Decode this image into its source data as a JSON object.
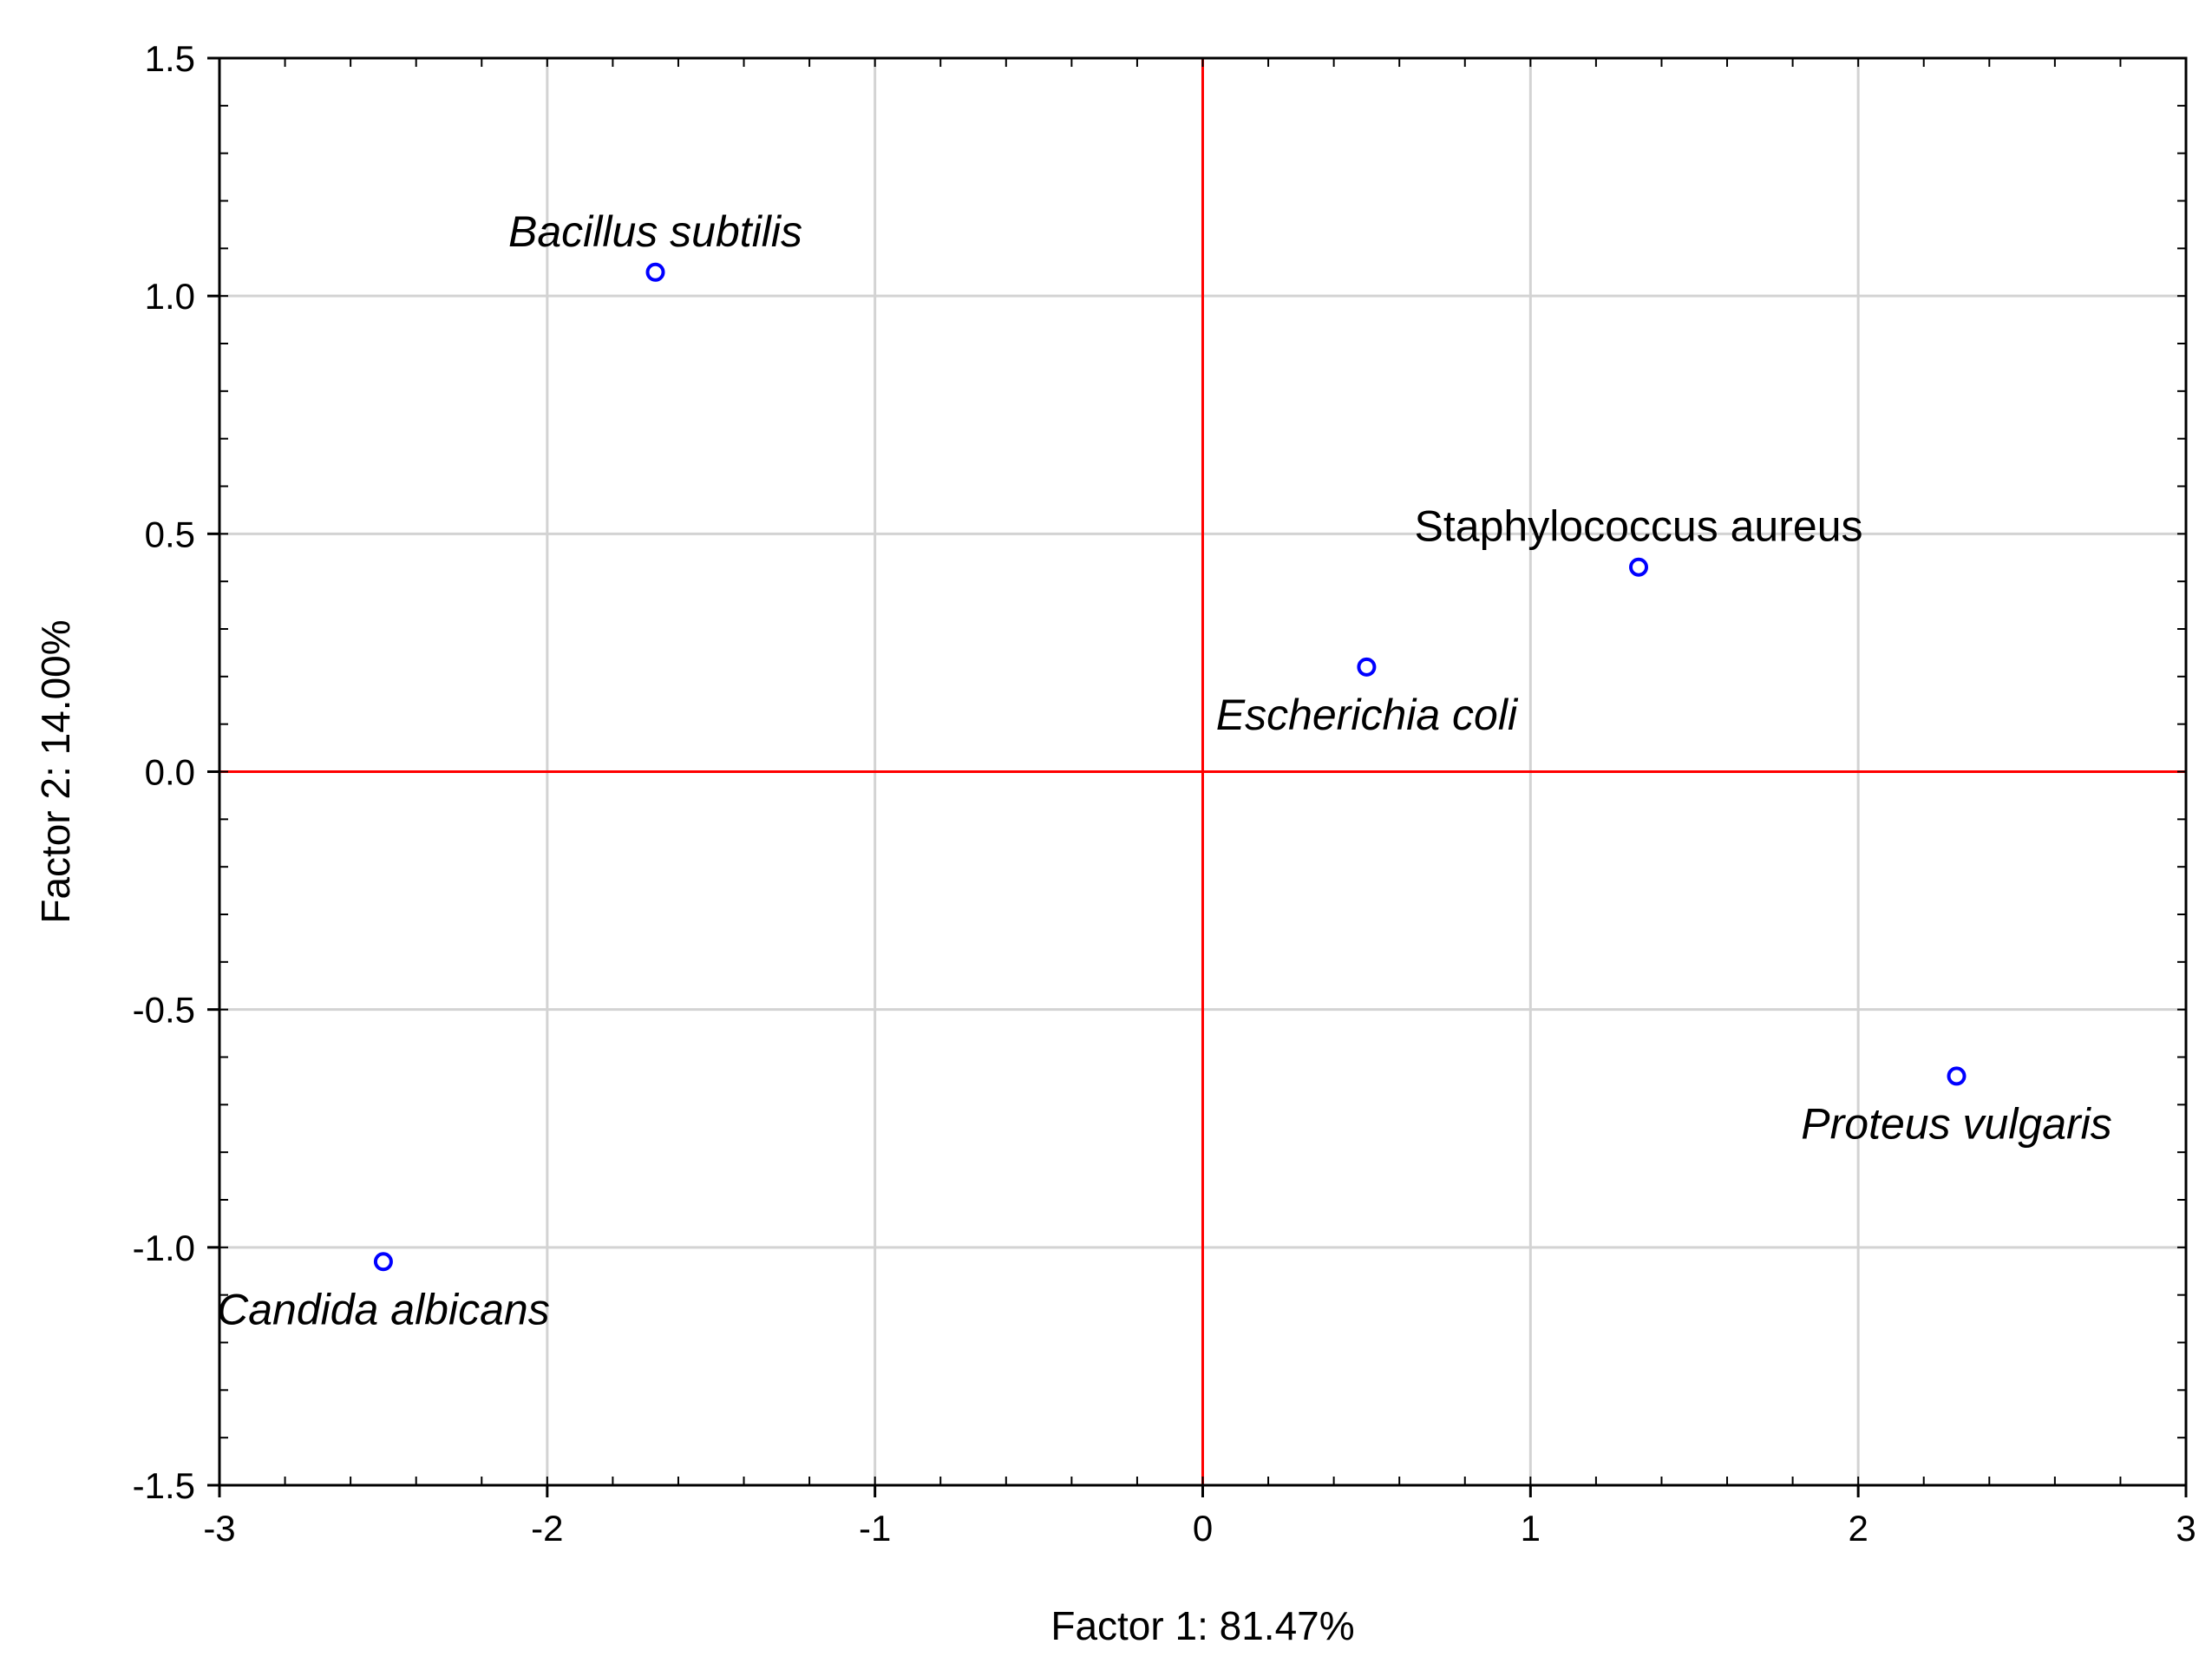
{
  "chart_data": {
    "type": "scatter",
    "xlabel": "Factor 1: 81.47%",
    "ylabel": "Factor 2: 14.00%",
    "xlim": [
      -3,
      3
    ],
    "ylim": [
      -1.5,
      1.5
    ],
    "x_ticks": [
      -3,
      -2,
      -1,
      0,
      1,
      2,
      3
    ],
    "x_tick_labels": [
      "-3",
      "-2",
      "-1",
      "0",
      "1",
      "2",
      "3"
    ],
    "y_ticks": [
      -1.5,
      -1.0,
      -0.5,
      0.0,
      0.5,
      1.0,
      1.5
    ],
    "y_tick_labels": [
      "-1.5",
      "-1.0",
      "-0.5",
      "0.0",
      "0.5",
      "1.0",
      "1.5"
    ],
    "grid": true,
    "reference_lines": {
      "x": 0,
      "y": 0,
      "color": "#ff0000"
    },
    "colors": {
      "points": "#0000ff",
      "grid": "#d3d3d3",
      "reference": "#ff0000",
      "frame": "#000000"
    },
    "points": [
      {
        "label": "Bacillus subtilis",
        "x": -1.67,
        "y": 1.05,
        "italic": true,
        "label_position": "above"
      },
      {
        "label": "Staphylococcus aureus",
        "x": 1.33,
        "y": 0.43,
        "italic": false,
        "label_position": "above"
      },
      {
        "label": "Escherichia coli",
        "x": 0.5,
        "y": 0.22,
        "italic": true,
        "label_position": "below"
      },
      {
        "label": "Proteus vulgaris",
        "x": 2.3,
        "y": -0.64,
        "italic": true,
        "label_position": "below"
      },
      {
        "label": "Candida albicans",
        "x": -2.5,
        "y": -1.03,
        "italic": true,
        "label_position": "below"
      }
    ]
  }
}
